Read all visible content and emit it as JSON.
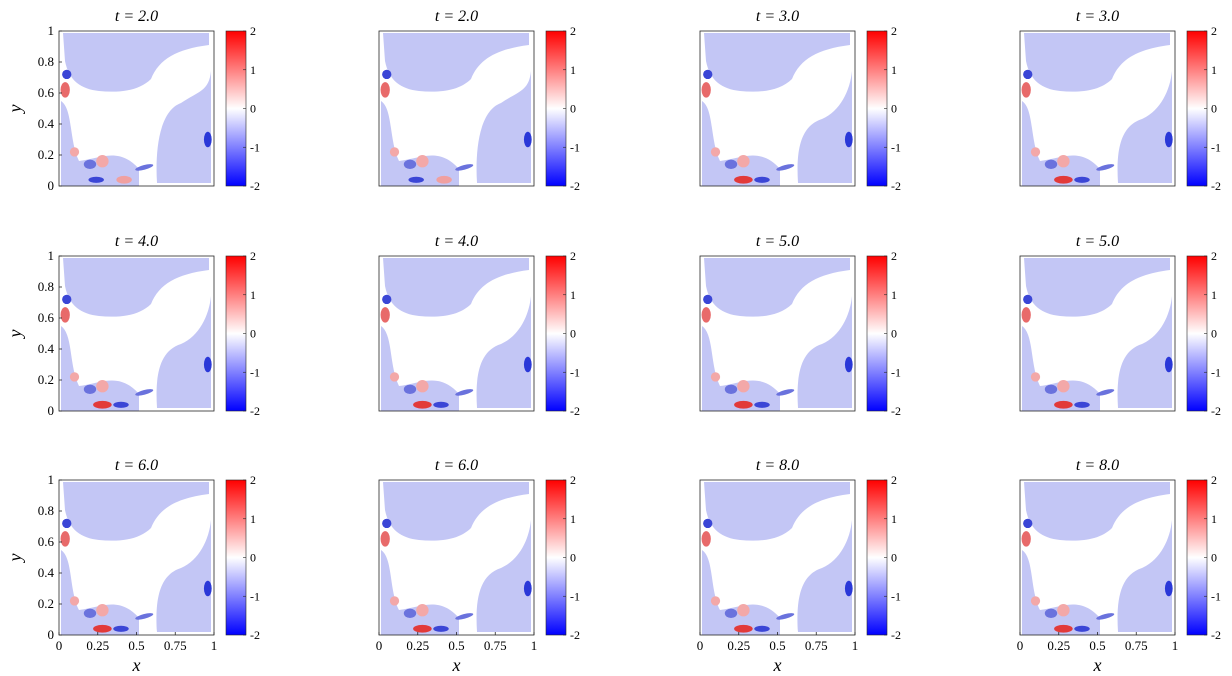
{
  "figure": {
    "colorbar_ticks": [
      "2",
      "1",
      "0",
      "-1",
      "-2"
    ],
    "colors": {
      "positive": "#ff0000",
      "negative": "#0000ff",
      "mid": "#ffffff",
      "region": "#c3c6f5"
    }
  },
  "chart_data": [
    {
      "type": "heatmap",
      "title": "t = 2.0",
      "xlabel": "",
      "ylabel": "y",
      "xlim": [
        0,
        1
      ],
      "ylim": [
        0,
        1
      ],
      "clim": [
        -2,
        2
      ],
      "xticks": [],
      "yticks": [
        "0",
        "0.2",
        "0.4",
        "0.6",
        "0.8",
        "1"
      ],
      "colorbar": [
        "2",
        "1",
        "0",
        "-1",
        "-2"
      ]
    },
    {
      "type": "heatmap",
      "title": "t = 2.0",
      "xlabel": "",
      "ylabel": "",
      "xlim": [
        0,
        1
      ],
      "ylim": [
        0,
        1
      ],
      "clim": [
        -2,
        2
      ],
      "xticks": [],
      "yticks": [],
      "colorbar": [
        "2",
        "1",
        "0",
        "-1",
        "-2"
      ]
    },
    {
      "type": "heatmap",
      "title": "t = 3.0",
      "xlabel": "",
      "ylabel": "",
      "xlim": [
        0,
        1
      ],
      "ylim": [
        0,
        1
      ],
      "clim": [
        -2,
        2
      ],
      "xticks": [],
      "yticks": [],
      "colorbar": [
        "2",
        "1",
        "0",
        "-1",
        "-2"
      ]
    },
    {
      "type": "heatmap",
      "title": "t = 3.0",
      "xlabel": "",
      "ylabel": "",
      "xlim": [
        0,
        1
      ],
      "ylim": [
        0,
        1
      ],
      "clim": [
        -2,
        2
      ],
      "xticks": [],
      "yticks": [],
      "colorbar": [
        "2",
        "1",
        "0",
        "-1",
        "-2"
      ]
    },
    {
      "type": "heatmap",
      "title": "t = 4.0",
      "xlabel": "",
      "ylabel": "y",
      "xlim": [
        0,
        1
      ],
      "ylim": [
        0,
        1
      ],
      "clim": [
        -2,
        2
      ],
      "xticks": [],
      "yticks": [
        "0",
        "0.2",
        "0.4",
        "0.6",
        "0.8",
        "1"
      ],
      "colorbar": [
        "2",
        "1",
        "0",
        "-1",
        "-2"
      ]
    },
    {
      "type": "heatmap",
      "title": "t = 4.0",
      "xlabel": "",
      "ylabel": "",
      "xlim": [
        0,
        1
      ],
      "ylim": [
        0,
        1
      ],
      "clim": [
        -2,
        2
      ],
      "xticks": [],
      "yticks": [],
      "colorbar": [
        "2",
        "1",
        "0",
        "-1",
        "-2"
      ]
    },
    {
      "type": "heatmap",
      "title": "t = 5.0",
      "xlabel": "",
      "ylabel": "",
      "xlim": [
        0,
        1
      ],
      "ylim": [
        0,
        1
      ],
      "clim": [
        -2,
        2
      ],
      "xticks": [],
      "yticks": [],
      "colorbar": [
        "2",
        "1",
        "0",
        "-1",
        "-2"
      ]
    },
    {
      "type": "heatmap",
      "title": "t = 5.0",
      "xlabel": "",
      "ylabel": "",
      "xlim": [
        0,
        1
      ],
      "ylim": [
        0,
        1
      ],
      "clim": [
        -2,
        2
      ],
      "xticks": [],
      "yticks": [],
      "colorbar": [
        "2",
        "1",
        "0",
        "-1",
        "-2"
      ]
    },
    {
      "type": "heatmap",
      "title": "t = 6.0",
      "xlabel": "x",
      "ylabel": "y",
      "xlim": [
        0,
        1
      ],
      "ylim": [
        0,
        1
      ],
      "clim": [
        -2,
        2
      ],
      "xticks": [
        "0",
        "0.25",
        "0.5",
        "0.75",
        "1"
      ],
      "yticks": [
        "0",
        "0.2",
        "0.4",
        "0.6",
        "0.8",
        "1"
      ],
      "colorbar": [
        "2",
        "1",
        "0",
        "-1",
        "-2"
      ]
    },
    {
      "type": "heatmap",
      "title": "t = 6.0",
      "xlabel": "x",
      "ylabel": "",
      "xlim": [
        0,
        1
      ],
      "ylim": [
        0,
        1
      ],
      "clim": [
        -2,
        2
      ],
      "xticks": [
        "0",
        "0.25",
        "0.5",
        "0.75",
        "1"
      ],
      "yticks": [],
      "colorbar": [
        "2",
        "1",
        "0",
        "-1",
        "-2"
      ]
    },
    {
      "type": "heatmap",
      "title": "t = 8.0",
      "xlabel": "x",
      "ylabel": "",
      "xlim": [
        0,
        1
      ],
      "ylim": [
        0,
        1
      ],
      "clim": [
        -2,
        2
      ],
      "xticks": [
        "0",
        "0.25",
        "0.5",
        "0.75",
        "1"
      ],
      "yticks": [],
      "colorbar": [
        "2",
        "1",
        "0",
        "-1",
        "-2"
      ]
    },
    {
      "type": "heatmap",
      "title": "t = 8.0",
      "xlabel": "x",
      "ylabel": "",
      "xlim": [
        0,
        1
      ],
      "ylim": [
        0,
        1
      ],
      "clim": [
        -2,
        2
      ],
      "xticks": [
        "0",
        "0.25",
        "0.5",
        "0.75",
        "1"
      ],
      "yticks": [],
      "colorbar": [
        "2",
        "1",
        "0",
        "-1",
        "-2"
      ]
    }
  ]
}
